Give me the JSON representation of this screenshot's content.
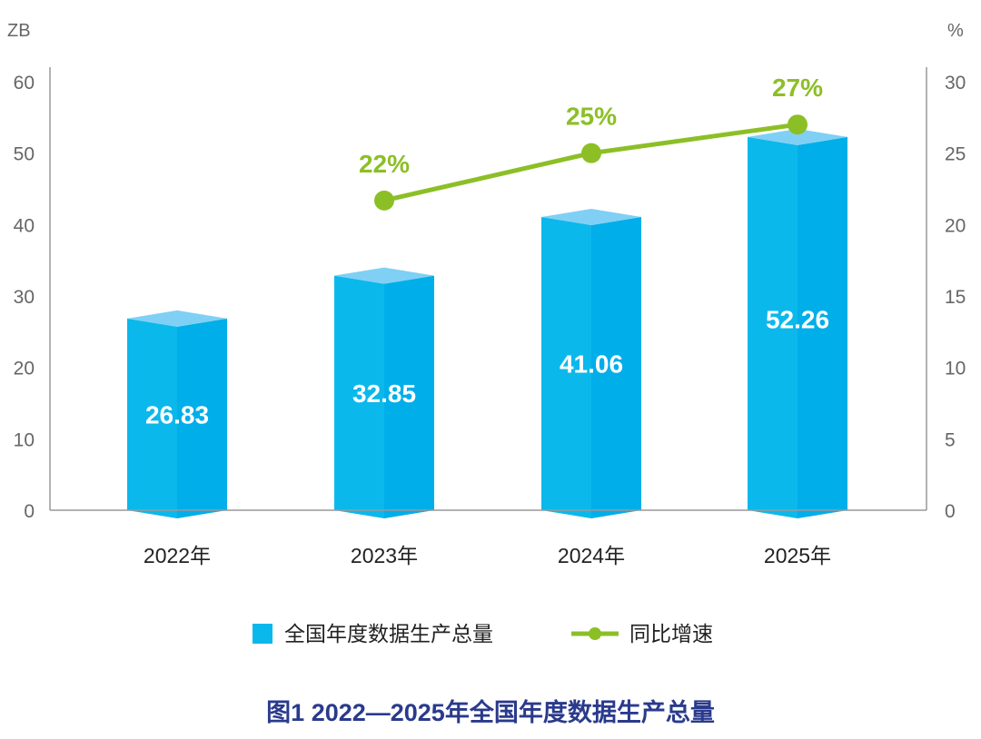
{
  "chart_data": {
    "type": "bar",
    "title": "图1 2022—2025年全国年度数据生产总量",
    "categories": [
      "2022年",
      "2023年",
      "2024年",
      "2025年"
    ],
    "series": [
      {
        "name": "全国年度数据生产总量",
        "type": "bar",
        "axis": "left",
        "values": [
          26.83,
          32.85,
          41.06,
          52.26
        ],
        "labels": [
          "26.83",
          "32.85",
          "41.06",
          "52.26"
        ],
        "color": "#0bb8ec"
      },
      {
        "name": "同比增速",
        "type": "line",
        "axis": "right",
        "values": [
          null,
          22,
          25,
          27
        ],
        "labels": [
          "",
          "22%",
          "25%",
          "27%"
        ],
        "color": "#8cbf26"
      }
    ],
    "left_axis": {
      "unit": "ZB",
      "ylim": [
        0,
        60
      ],
      "ticks": [
        "0",
        "10",
        "20",
        "30",
        "40",
        "50",
        "60"
      ]
    },
    "right_axis": {
      "unit": "%",
      "ylim": [
        0,
        30
      ],
      "ticks": [
        "0",
        "5",
        "10",
        "15",
        "20",
        "25",
        "30"
      ]
    },
    "legend": "bottom",
    "grid": false
  }
}
